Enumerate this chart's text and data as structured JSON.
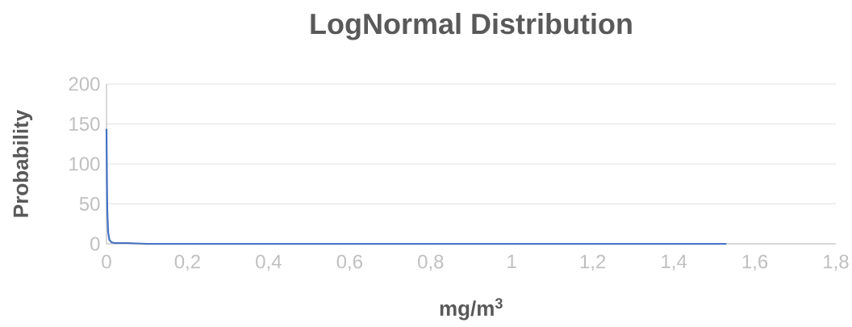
{
  "chart_data": {
    "type": "line",
    "title": "LogNormal Distribution",
    "xlabel": "mg/m$^{3}$",
    "ylabel": "Probability",
    "x": [
      0,
      0.001,
      0.002,
      0.004,
      0.007,
      0.012,
      0.02,
      0.05,
      0.1,
      0.3,
      0.8,
      1.53
    ],
    "series": [
      {
        "color": "#4472c4",
        "values": [
          144,
          80,
          40,
          15,
          5,
          2,
          1,
          1,
          0,
          0,
          0,
          0
        ]
      }
    ],
    "xlim": [
      0,
      1.8
    ],
    "ylim": [
      0,
      200
    ],
    "xticks": [
      0,
      {
        "value": 0.2,
        "label": "0,2"
      },
      {
        "value": 0.4,
        "label": "0,4"
      },
      {
        "value": 0.6,
        "label": "0,6"
      },
      {
        "value": 0.8,
        "label": "0,8"
      },
      1,
      {
        "value": 1.2,
        "label": "1,2"
      },
      {
        "value": 1.4,
        "label": "1,4"
      },
      {
        "value": 1.6,
        "label": "1,6"
      },
      {
        "value": 1.8,
        "label": "1,8"
      }
    ],
    "yticks": [
      0,
      50,
      100,
      150,
      200
    ],
    "grid": "y",
    "marker": "none",
    "line_style": "solid"
  }
}
